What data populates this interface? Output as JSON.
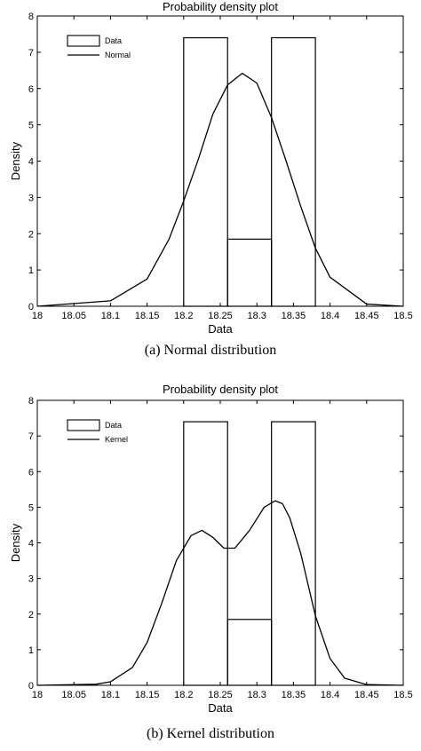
{
  "chart_data": [
    {
      "type": "bar",
      "title": "Probability density plot",
      "xlabel": "Data",
      "ylabel": "Density",
      "xlim": [
        18,
        18.5
      ],
      "ylim": [
        0,
        8
      ],
      "xticks": [
        "18",
        "18.05",
        "18.1",
        "18.15",
        "18.2",
        "18.25",
        "18.3",
        "18.35",
        "18.4",
        "18.45",
        "18.5"
      ],
      "yticks": [
        "0",
        "1",
        "2",
        "3",
        "4",
        "5",
        "6",
        "7",
        "8"
      ],
      "grid": false,
      "legend_position": "top-left",
      "legend": [
        "Data",
        "Normal"
      ],
      "histogram": [
        {
          "x0": 18.2,
          "x1": 18.26,
          "density": 7.4
        },
        {
          "x0": 18.26,
          "x1": 18.32,
          "density": 1.85
        },
        {
          "x0": 18.32,
          "x1": 18.38,
          "density": 7.4
        }
      ],
      "curve": {
        "name": "Normal",
        "x": [
          18.0,
          18.1,
          18.15,
          18.18,
          18.2,
          18.22,
          18.24,
          18.26,
          18.28,
          18.3,
          18.32,
          18.34,
          18.36,
          18.38,
          18.4,
          18.45,
          18.5
        ],
        "y": [
          0.0,
          0.15,
          0.75,
          1.85,
          2.9,
          4.05,
          5.3,
          6.1,
          6.42,
          6.15,
          5.2,
          4.0,
          2.75,
          1.6,
          0.8,
          0.06,
          0.0
        ]
      },
      "caption": "(a)  Normal distribution"
    },
    {
      "type": "bar",
      "title": "Probability density plot",
      "xlabel": "Data",
      "ylabel": "Density",
      "xlim": [
        18,
        18.5
      ],
      "ylim": [
        0,
        8
      ],
      "xticks": [
        "18",
        "18.05",
        "18.1",
        "18.15",
        "18.2",
        "18.25",
        "18.3",
        "18.35",
        "18.4",
        "18.45",
        "18.5"
      ],
      "yticks": [
        "0",
        "1",
        "2",
        "3",
        "4",
        "5",
        "6",
        "7",
        "8"
      ],
      "grid": false,
      "legend_position": "top-left",
      "legend": [
        "Data",
        "Kernel"
      ],
      "histogram": [
        {
          "x0": 18.2,
          "x1": 18.26,
          "density": 7.4
        },
        {
          "x0": 18.26,
          "x1": 18.32,
          "density": 1.85
        },
        {
          "x0": 18.32,
          "x1": 18.38,
          "density": 7.4
        }
      ],
      "curve": {
        "name": "Kernel",
        "x": [
          18.0,
          18.08,
          18.1,
          18.13,
          18.15,
          18.17,
          18.19,
          18.21,
          18.225,
          18.24,
          18.255,
          18.27,
          18.29,
          18.31,
          18.325,
          18.335,
          18.345,
          18.36,
          18.38,
          18.4,
          18.42,
          18.45,
          18.5
        ],
        "y": [
          0.0,
          0.03,
          0.1,
          0.5,
          1.2,
          2.3,
          3.5,
          4.2,
          4.35,
          4.15,
          3.85,
          3.85,
          4.35,
          5.0,
          5.18,
          5.1,
          4.7,
          3.7,
          1.95,
          0.75,
          0.2,
          0.02,
          0.0
        ]
      },
      "caption": "(b) Kernel distribution"
    }
  ]
}
